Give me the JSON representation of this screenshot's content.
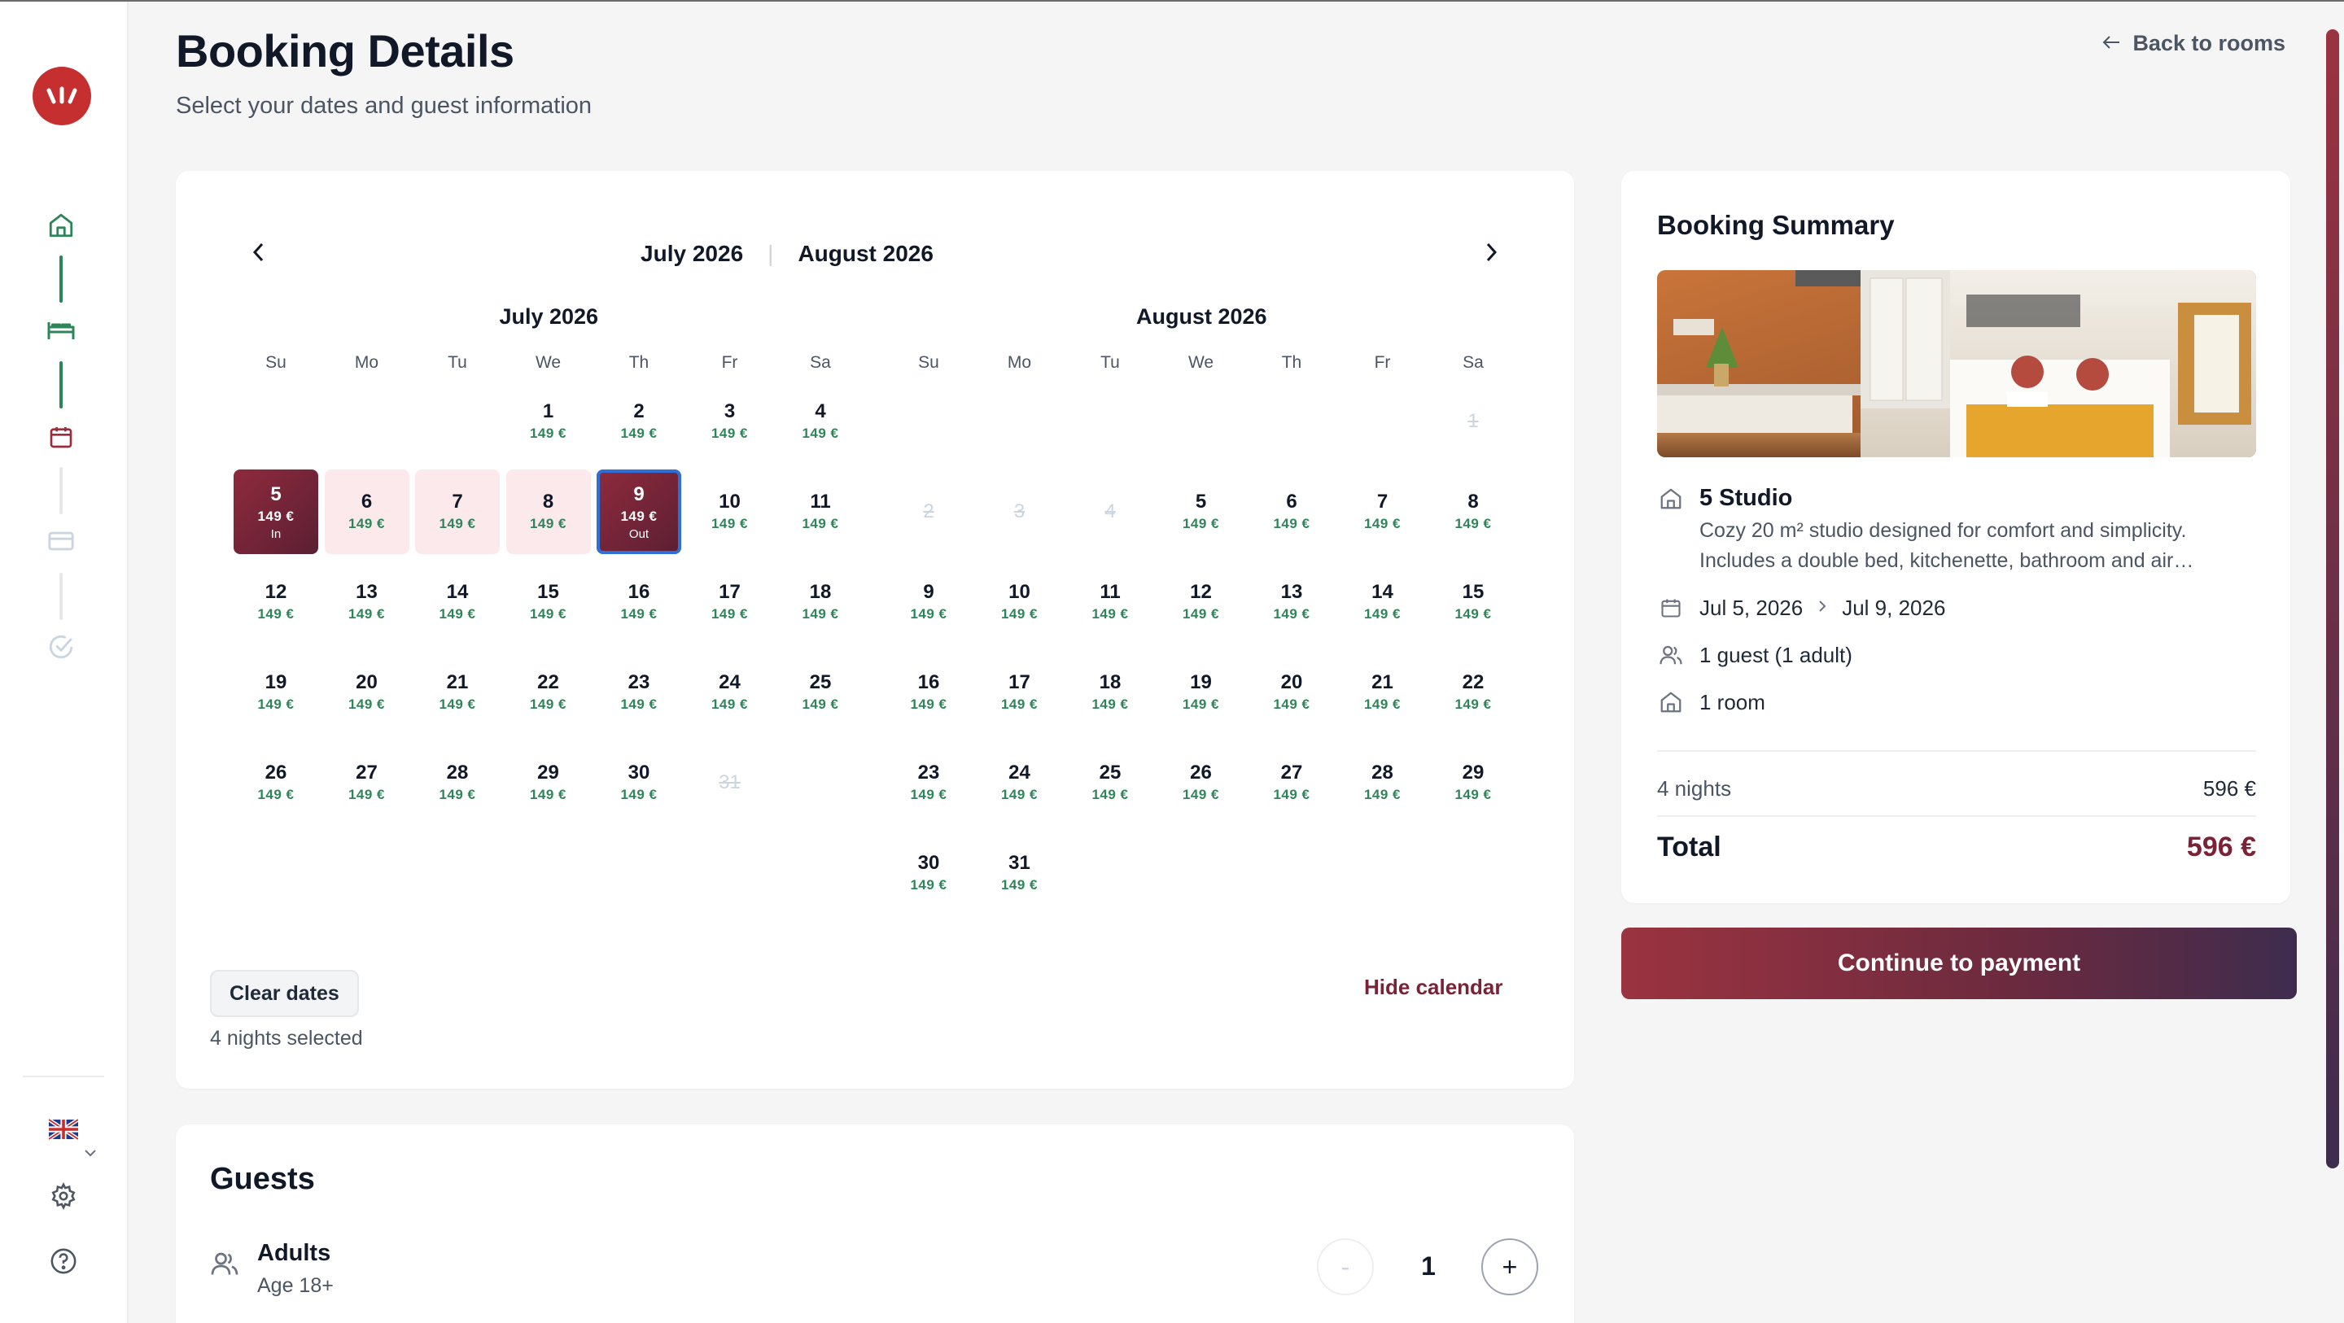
{
  "header": {
    "title": "Booking Details",
    "subtitle": "Select your dates and guest information",
    "back_label": "Back to rooms"
  },
  "sidebar": {
    "steps": [
      {
        "name": "home",
        "state": "done"
      },
      {
        "name": "room",
        "state": "done"
      },
      {
        "name": "dates",
        "state": "active"
      },
      {
        "name": "payment",
        "state": "pending"
      },
      {
        "name": "confirmation",
        "state": "pending"
      }
    ],
    "bottom": [
      "language-flag",
      "settings",
      "help"
    ]
  },
  "calendar": {
    "switch_left": "July 2026",
    "switch_right": "August 2026",
    "weekdays": [
      "Su",
      "Mo",
      "Tu",
      "We",
      "Th",
      "Fr",
      "Sa"
    ],
    "price_label": "149 €",
    "in_label": "In",
    "out_label": "Out",
    "months": [
      {
        "title": "July 2026",
        "first_weekday": 3,
        "days": 31,
        "disabled": [
          31
        ],
        "check_in": 5,
        "check_out": 9
      },
      {
        "title": "August 2026",
        "first_weekday": 6,
        "days": 31,
        "disabled": [
          1,
          2,
          3,
          4
        ]
      }
    ],
    "clear_label": "Clear dates",
    "nights_selected": "4 nights selected",
    "hide_label": "Hide calendar"
  },
  "guests": {
    "title": "Guests",
    "adults_label": "Adults",
    "adults_sub": "Age 18+",
    "adults_value": "1",
    "minus": "-",
    "plus": "+"
  },
  "summary": {
    "title": "Booking Summary",
    "room_name": "5 Studio",
    "room_desc": "Cozy 20 m² studio designed for comfort and simplicity. Includes a double bed, kitchenette, bathroom and air…",
    "date_from": "Jul 5, 2026",
    "date_to": "Jul 9, 2026",
    "guests": "1 guest (1 adult)",
    "rooms": "1 room",
    "nights_label": "4 nights",
    "nights_amount": "596 €",
    "total_label": "Total",
    "total_amount": "596 €"
  },
  "pay_label": "Continue to payment",
  "colors": {
    "accent": "#7a2337",
    "price": "#2f855a",
    "step_done": "#2f855a",
    "highlight_range": "#fbe9ec"
  }
}
